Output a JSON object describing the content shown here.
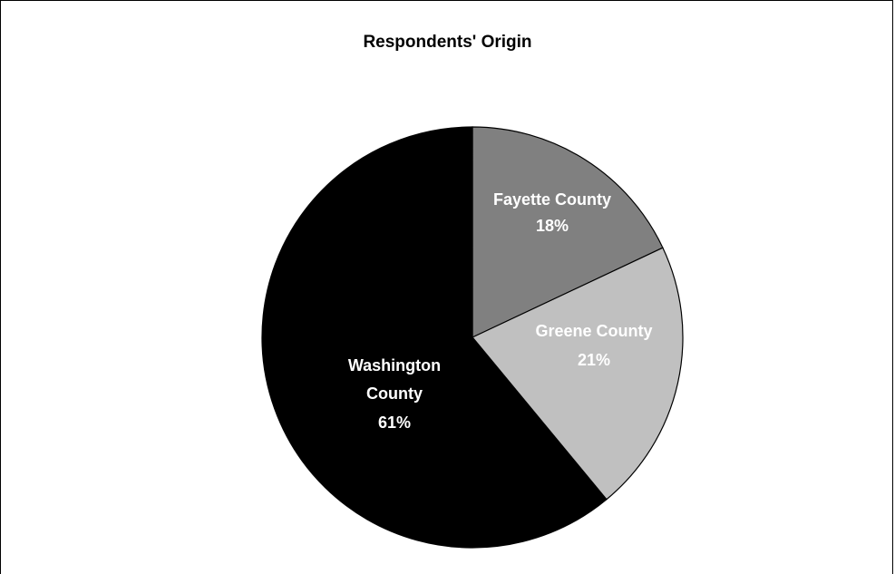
{
  "chart_data": {
    "type": "pie",
    "title": "Respondents' Origin",
    "slices": [
      {
        "label": "Fayette County",
        "value": 18,
        "value_label": "18%",
        "color": "#808080"
      },
      {
        "label": "Greene County",
        "value": 21,
        "value_label": "21%",
        "color": "#c0c0c0"
      },
      {
        "label": "Washington County",
        "value": 61,
        "value_label": "61%",
        "color": "#000000"
      }
    ],
    "start": "12 o'clock",
    "direction": "clockwise",
    "legend": "none"
  }
}
